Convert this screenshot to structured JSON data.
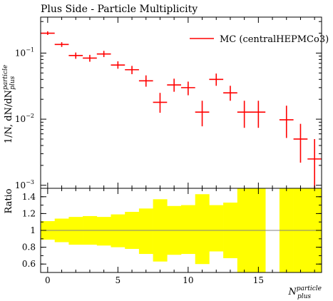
{
  "chart_data": [
    {
      "type": "scatter",
      "title": "Plus Side - Particle Multiplicity",
      "ylabel": "1/N, dN/dN",
      "ylabel_sup": "particle",
      "ylabel_sub": "plus",
      "yscale": "log",
      "ylim": [
        0.0009,
        0.35
      ],
      "xlim": [
        -0.5,
        19.5
      ],
      "grid": false,
      "legend_position": "top-right",
      "yticks": [
        {
          "value": 0.1,
          "label": "10",
          "exp": "−1"
        },
        {
          "value": 0.01,
          "label": "10",
          "exp": "−2"
        },
        {
          "value": 0.001,
          "label": "10",
          "exp": "−3"
        }
      ],
      "series": [
        {
          "name": "MC (centralHEPMCo3)",
          "color": "#ff0000",
          "x": [
            0,
            1,
            2,
            3,
            4,
            5,
            6,
            7,
            8,
            9,
            10,
            11,
            12,
            13,
            14,
            15,
            17,
            18,
            19
          ],
          "y": [
            0.2,
            0.135,
            0.092,
            0.084,
            0.097,
            0.066,
            0.056,
            0.038,
            0.018,
            0.033,
            0.03,
            0.0128,
            0.04,
            0.025,
            0.0128,
            0.0128,
            0.0098,
            0.005,
            0.0025
          ],
          "y_low": [
            0.188,
            0.124,
            0.082,
            0.074,
            0.087,
            0.058,
            0.048,
            0.031,
            0.0125,
            0.026,
            0.023,
            0.0078,
            0.032,
            0.019,
            0.0074,
            0.0074,
            0.0052,
            0.0022,
            0.0008
          ],
          "y_high": [
            0.213,
            0.146,
            0.102,
            0.094,
            0.108,
            0.075,
            0.064,
            0.046,
            0.025,
            0.041,
            0.037,
            0.019,
            0.049,
            0.032,
            0.019,
            0.019,
            0.016,
            0.0085,
            0.005
          ]
        }
      ]
    },
    {
      "type": "area",
      "ylabel": "Ratio",
      "xlabel": "N",
      "xlabel_sup": "particle",
      "xlabel_sub": "plus",
      "xlim": [
        -0.5,
        19.5
      ],
      "ylim": [
        0.5,
        1.5
      ],
      "xticks": [
        0,
        5,
        10,
        15
      ],
      "yticks": [
        {
          "value": 0.6,
          "label": "0.6"
        },
        {
          "value": 0.8,
          "label": "0.8"
        },
        {
          "value": 1.0,
          "label": "1"
        },
        {
          "value": 1.2,
          "label": "1.2"
        },
        {
          "value": 1.4,
          "label": "1.4"
        }
      ],
      "reference_line": 1.0,
      "band_color": "#ffff00",
      "band": {
        "x": [
          0,
          1,
          2,
          3,
          4,
          5,
          6,
          7,
          8,
          9,
          10,
          11,
          12,
          13,
          14,
          15,
          16,
          17,
          18,
          19
        ],
        "low": [
          0.89,
          0.86,
          0.83,
          0.83,
          0.82,
          0.8,
          0.78,
          0.72,
          0.63,
          0.71,
          0.72,
          0.6,
          0.75,
          0.67,
          0.5,
          0.5,
          null,
          0.5,
          0.5,
          0.5
        ],
        "high": [
          1.11,
          1.14,
          1.16,
          1.17,
          1.16,
          1.19,
          1.22,
          1.26,
          1.37,
          1.29,
          1.3,
          1.43,
          1.3,
          1.33,
          1.5,
          1.5,
          null,
          1.5,
          1.5,
          1.5
        ]
      }
    }
  ]
}
